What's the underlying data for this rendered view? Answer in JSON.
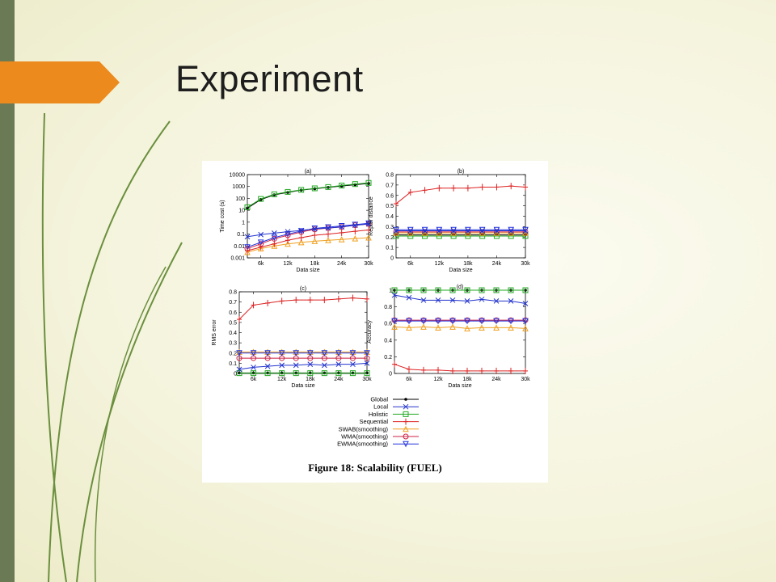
{
  "slide": {
    "title": "Experiment"
  },
  "figure": {
    "caption": "Figure 18: Scalability (FUEL)"
  },
  "colors": {
    "accent_orange": "#ec8a1e",
    "sidebar_green": "#6a7a54",
    "line_green": "#6b8f3e"
  },
  "legend": {
    "position": "bottom-center",
    "entries": [
      {
        "name": "Global",
        "color": "#000000",
        "marker": "dot"
      },
      {
        "name": "Local",
        "color": "#2233cc",
        "marker": "x"
      },
      {
        "name": "Holistic",
        "color": "#22aa22",
        "marker": "square"
      },
      {
        "name": "Sequential",
        "color": "#dd2222",
        "marker": "plus"
      },
      {
        "name": "SWAB(smoothing)",
        "color": "#f0a020",
        "marker": "triangle"
      },
      {
        "name": "WMA(smoothing)",
        "color": "#cc2244",
        "marker": "circle"
      },
      {
        "name": "EWMA(smoothing)",
        "color": "#2233dd",
        "marker": "triangle-down"
      }
    ]
  },
  "chart_data": [
    {
      "panel": "(a)",
      "type": "line",
      "ylabel": "Time cost (s)",
      "xlabel": "Data size",
      "yscale": "log",
      "ylim": [
        0.001,
        10000
      ],
      "xlim": [
        3000,
        30000
      ],
      "yticks": [
        0.001,
        0.01,
        0.1,
        1,
        10,
        100,
        1000,
        10000
      ],
      "ytick_labels": [
        "0.001",
        "0.01",
        "0.1",
        "1",
        "10",
        "100",
        "1000",
        "10000"
      ],
      "xticks": [
        6000,
        12000,
        18000,
        24000,
        30000
      ],
      "xtick_labels": [
        "6k",
        "12k",
        "18k",
        "24k",
        "30k"
      ],
      "x": [
        3000,
        6000,
        9000,
        12000,
        15000,
        18000,
        21000,
        24000,
        27000,
        30000
      ],
      "series": [
        {
          "name": "Global",
          "values": [
            15,
            80,
            200,
            320,
            500,
            650,
            850,
            1100,
            1400,
            1800
          ]
        },
        {
          "name": "Local",
          "values": [
            0.06,
            0.09,
            0.12,
            0.16,
            0.2,
            0.28,
            0.32,
            0.4,
            0.55,
            0.7
          ]
        },
        {
          "name": "Holistic",
          "values": [
            18,
            90,
            220,
            350,
            520,
            700,
            900,
            1200,
            1600,
            2000
          ]
        },
        {
          "name": "Sequential",
          "values": [
            0.004,
            0.008,
            0.015,
            0.03,
            0.05,
            0.08,
            0.1,
            0.13,
            0.17,
            0.22
          ]
        },
        {
          "name": "SWAB(smoothing)",
          "values": [
            0.003,
            0.006,
            0.01,
            0.015,
            0.02,
            0.025,
            0.03,
            0.035,
            0.042,
            0.05
          ]
        },
        {
          "name": "WMA(smoothing)",
          "values": [
            0.006,
            0.015,
            0.04,
            0.08,
            0.15,
            0.25,
            0.32,
            0.4,
            0.55,
            0.7
          ]
        },
        {
          "name": "EWMA(smoothing)",
          "values": [
            0.008,
            0.02,
            0.05,
            0.1,
            0.18,
            0.3,
            0.38,
            0.48,
            0.62,
            0.8
          ]
        }
      ]
    },
    {
      "panel": "(b)",
      "type": "line",
      "ylabel": "Repair distance",
      "xlabel": "Data size",
      "yscale": "linear",
      "ylim": [
        0,
        0.8
      ],
      "xlim": [
        3000,
        30000
      ],
      "yticks": [
        0,
        0.1,
        0.2,
        0.3,
        0.4,
        0.5,
        0.6,
        0.7,
        0.8
      ],
      "ytick_labels": [
        "0",
        "0.1",
        "0.2",
        "0.3",
        "0.4",
        "0.5",
        "0.6",
        "0.7",
        "0.8"
      ],
      "xticks": [
        6000,
        12000,
        18000,
        24000,
        30000
      ],
      "xtick_labels": [
        "6k",
        "12k",
        "18k",
        "24k",
        "30k"
      ],
      "x": [
        3000,
        6000,
        9000,
        12000,
        15000,
        18000,
        21000,
        24000,
        27000,
        30000
      ],
      "series": [
        {
          "name": "Global",
          "values": [
            0.22,
            0.22,
            0.22,
            0.22,
            0.22,
            0.22,
            0.22,
            0.22,
            0.22,
            0.22
          ]
        },
        {
          "name": "Local",
          "values": [
            0.26,
            0.26,
            0.26,
            0.26,
            0.26,
            0.26,
            0.26,
            0.26,
            0.26,
            0.26
          ]
        },
        {
          "name": "Holistic",
          "values": [
            0.21,
            0.21,
            0.21,
            0.21,
            0.21,
            0.21,
            0.21,
            0.21,
            0.21,
            0.21
          ]
        },
        {
          "name": "Sequential",
          "values": [
            0.52,
            0.63,
            0.65,
            0.67,
            0.67,
            0.67,
            0.68,
            0.68,
            0.69,
            0.68
          ]
        },
        {
          "name": "SWAB(smoothing)",
          "values": [
            0.24,
            0.24,
            0.24,
            0.24,
            0.24,
            0.24,
            0.24,
            0.24,
            0.24,
            0.24
          ]
        },
        {
          "name": "WMA(smoothing)",
          "values": [
            0.25,
            0.25,
            0.25,
            0.25,
            0.25,
            0.25,
            0.25,
            0.25,
            0.25,
            0.25
          ]
        },
        {
          "name": "EWMA(smoothing)",
          "values": [
            0.27,
            0.27,
            0.27,
            0.27,
            0.27,
            0.27,
            0.27,
            0.27,
            0.27,
            0.27
          ]
        }
      ]
    },
    {
      "panel": "(c)",
      "type": "line",
      "ylabel": "RMS error",
      "xlabel": "Data size",
      "yscale": "linear",
      "ylim": [
        0,
        0.8
      ],
      "xlim": [
        3000,
        30000
      ],
      "yticks": [
        0,
        0.1,
        0.2,
        0.3,
        0.4,
        0.5,
        0.6,
        0.7,
        0.8
      ],
      "ytick_labels": [
        "0",
        "0.1",
        "0.2",
        "0.3",
        "0.4",
        "0.5",
        "0.6",
        "0.7",
        "0.8"
      ],
      "xticks": [
        6000,
        12000,
        18000,
        24000,
        30000
      ],
      "xtick_labels": [
        "6k",
        "12k",
        "18k",
        "24k",
        "30k"
      ],
      "x": [
        3000,
        6000,
        9000,
        12000,
        15000,
        18000,
        21000,
        24000,
        27000,
        30000
      ],
      "series": [
        {
          "name": "Global",
          "values": [
            0.005,
            0.005,
            0.005,
            0.005,
            0.005,
            0.005,
            0.005,
            0.005,
            0.005,
            0.005
          ]
        },
        {
          "name": "Local",
          "values": [
            0.04,
            0.06,
            0.07,
            0.08,
            0.08,
            0.09,
            0.08,
            0.09,
            0.09,
            0.1
          ]
        },
        {
          "name": "Holistic",
          "values": [
            0.003,
            0.003,
            0.003,
            0.003,
            0.003,
            0.003,
            0.003,
            0.003,
            0.003,
            0.003
          ]
        },
        {
          "name": "Sequential",
          "values": [
            0.53,
            0.67,
            0.69,
            0.71,
            0.72,
            0.72,
            0.72,
            0.73,
            0.74,
            0.73
          ]
        },
        {
          "name": "SWAB(smoothing)",
          "values": [
            0.21,
            0.21,
            0.21,
            0.21,
            0.21,
            0.21,
            0.21,
            0.21,
            0.21,
            0.21
          ]
        },
        {
          "name": "WMA(smoothing)",
          "values": [
            0.15,
            0.15,
            0.15,
            0.15,
            0.15,
            0.15,
            0.15,
            0.15,
            0.15,
            0.15
          ]
        },
        {
          "name": "EWMA(smoothing)",
          "values": [
            0.2,
            0.2,
            0.2,
            0.2,
            0.2,
            0.2,
            0.2,
            0.2,
            0.2,
            0.2
          ]
        }
      ]
    },
    {
      "panel": "(d)",
      "type": "line",
      "ylabel": "Accuracy",
      "xlabel": "Data size",
      "yscale": "linear",
      "ylim": [
        0,
        1
      ],
      "xlim": [
        3000,
        30000
      ],
      "yticks": [
        0,
        0.2,
        0.4,
        0.6,
        0.8,
        1
      ],
      "ytick_labels": [
        "0",
        "0.2",
        "0.4",
        "0.6",
        "0.8",
        "1"
      ],
      "xticks": [
        6000,
        12000,
        18000,
        24000,
        30000
      ],
      "xtick_labels": [
        "6k",
        "12k",
        "18k",
        "24k",
        "30k"
      ],
      "x": [
        3000,
        6000,
        9000,
        12000,
        15000,
        18000,
        21000,
        24000,
        27000,
        30000
      ],
      "series": [
        {
          "name": "Global",
          "values": [
            1,
            1,
            1,
            1,
            1,
            1,
            1,
            1,
            1,
            1
          ]
        },
        {
          "name": "Local",
          "values": [
            0.94,
            0.91,
            0.88,
            0.88,
            0.88,
            0.87,
            0.89,
            0.87,
            0.87,
            0.84
          ]
        },
        {
          "name": "Holistic",
          "values": [
            1,
            1,
            1,
            1,
            1,
            1,
            1,
            1,
            1,
            1
          ]
        },
        {
          "name": "Sequential",
          "values": [
            0.11,
            0.05,
            0.04,
            0.04,
            0.03,
            0.03,
            0.03,
            0.03,
            0.03,
            0.03
          ]
        },
        {
          "name": "SWAB(smoothing)",
          "values": [
            0.56,
            0.55,
            0.56,
            0.55,
            0.56,
            0.54,
            0.55,
            0.55,
            0.55,
            0.54
          ]
        },
        {
          "name": "WMA(smoothing)",
          "values": [
            0.64,
            0.64,
            0.64,
            0.64,
            0.64,
            0.64,
            0.64,
            0.64,
            0.64,
            0.64
          ]
        },
        {
          "name": "EWMA(smoothing)",
          "values": [
            0.63,
            0.63,
            0.63,
            0.63,
            0.63,
            0.63,
            0.63,
            0.63,
            0.63,
            0.63
          ]
        }
      ]
    }
  ]
}
